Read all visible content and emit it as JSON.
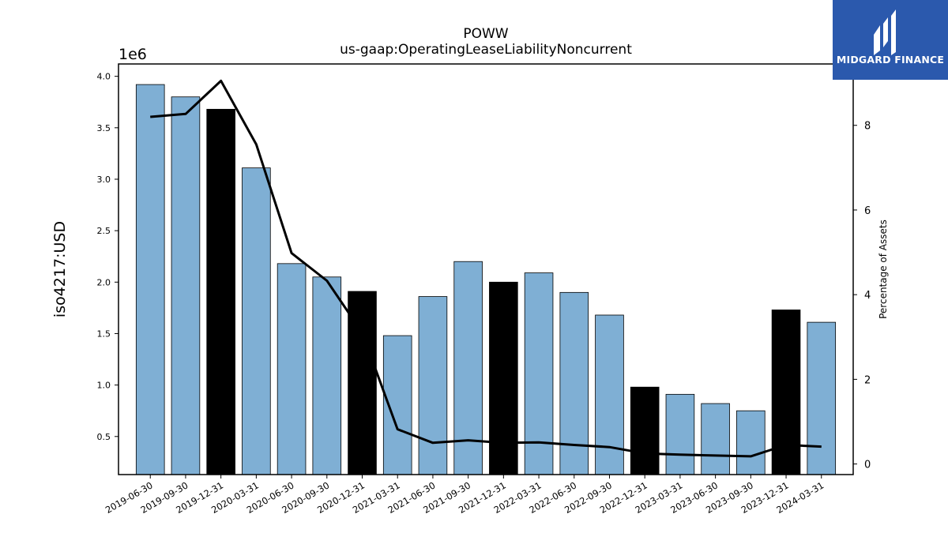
{
  "chart_data": {
    "type": "bar",
    "title": "POWW",
    "subtitle": "us-gaap:OperatingLeaseLiabilityNoncurrent",
    "ylabel": "iso4217:USD",
    "y_offset_label": "1e6",
    "y2label": "Percentage of Assets",
    "categories": [
      "2019-06-30",
      "2019-09-30",
      "2019-12-31",
      "2020-03-31",
      "2020-06-30",
      "2020-09-30",
      "2020-12-31",
      "2021-03-31",
      "2021-06-30",
      "2021-09-30",
      "2021-12-31",
      "2022-03-31",
      "2022-06-30",
      "2022-09-30",
      "2022-12-31",
      "2023-03-31",
      "2023-06-30",
      "2023-09-30",
      "2023-12-31",
      "2024-03-31"
    ],
    "series": [
      {
        "values": [
          3.92,
          3.8,
          3.68,
          3.11,
          2.18,
          2.05,
          1.91,
          1.48,
          1.86,
          2.2,
          2.0,
          2.09,
          1.9,
          1.68,
          0.98,
          0.91,
          0.82,
          0.75,
          1.73,
          1.61
        ],
        "bar_colors": [
          "#7fafd4",
          "#7fafd4",
          "#000000",
          "#7fafd4",
          "#7fafd4",
          "#7fafd4",
          "#000000",
          "#7fafd4",
          "#7fafd4",
          "#7fafd4",
          "#000000",
          "#7fafd4",
          "#7fafd4",
          "#7fafd4",
          "#000000",
          "#7fafd4",
          "#7fafd4",
          "#7fafd4",
          "#000000",
          "#7fafd4"
        ]
      },
      {
        "axis": "right",
        "type": "line",
        "values": [
          8.2,
          8.27,
          9.05,
          7.55,
          4.98,
          4.33,
          3.1,
          0.82,
          0.5,
          0.56,
          0.5,
          0.51,
          0.45,
          0.4,
          0.25,
          0.22,
          0.2,
          0.18,
          0.45,
          0.41
        ]
      }
    ],
    "ylim": [
      0.13,
      4.12
    ],
    "y_ticks": [
      0.5,
      1.0,
      1.5,
      2.0,
      2.5,
      3.0,
      3.5,
      4.0
    ],
    "y_tick_labels": [
      "0.5",
      "1.0",
      "1.5",
      "2.0",
      "2.5",
      "3.0",
      "3.5",
      "4.0"
    ],
    "y2lim": [
      -0.25,
      9.45
    ],
    "y2_ticks": [
      0,
      2,
      4,
      6,
      8
    ],
    "y2_tick_labels": [
      "0",
      "2",
      "4",
      "6",
      "8"
    ],
    "grid": false,
    "colors": {
      "bar": "#7fafd4",
      "bar_highlight": "#000000",
      "line": "#000000"
    }
  },
  "logo": {
    "text": "MIDGARD FINANCE",
    "background": "#2b59ad"
  }
}
